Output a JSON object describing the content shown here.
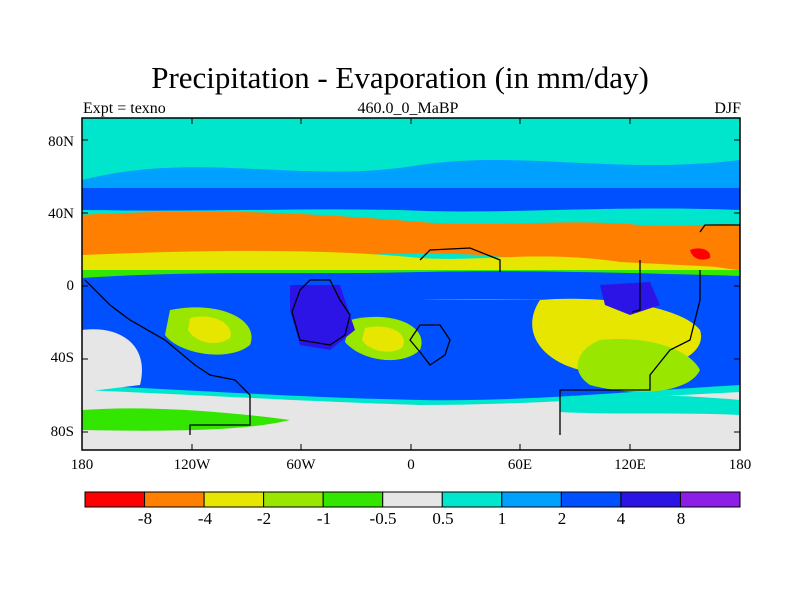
{
  "title": "Precipitation - Evaporation (in mm/day)",
  "subtitle_left": "Expt = texno",
  "subtitle_center": "460.0_0_MaBP",
  "subtitle_right": "DJF",
  "lat_ticks": [
    "80N",
    "40N",
    "0",
    "40S",
    "80S"
  ],
  "lon_ticks": [
    "180",
    "120W",
    "60W",
    "0",
    "60E",
    "120E",
    "180"
  ],
  "colorbar": {
    "levels": [
      "-8",
      "-4",
      "-2",
      "-1",
      "-0.5",
      "0.5",
      "1",
      "2",
      "4",
      "8"
    ],
    "colors": [
      "#ff0000",
      "#ff8000",
      "#e6e600",
      "#99e600",
      "#33e600",
      "#e6e6e6",
      "#00e6cc",
      "#00a0ff",
      "#0050ff",
      "#2d14e6",
      "#8c1ee6"
    ]
  }
}
